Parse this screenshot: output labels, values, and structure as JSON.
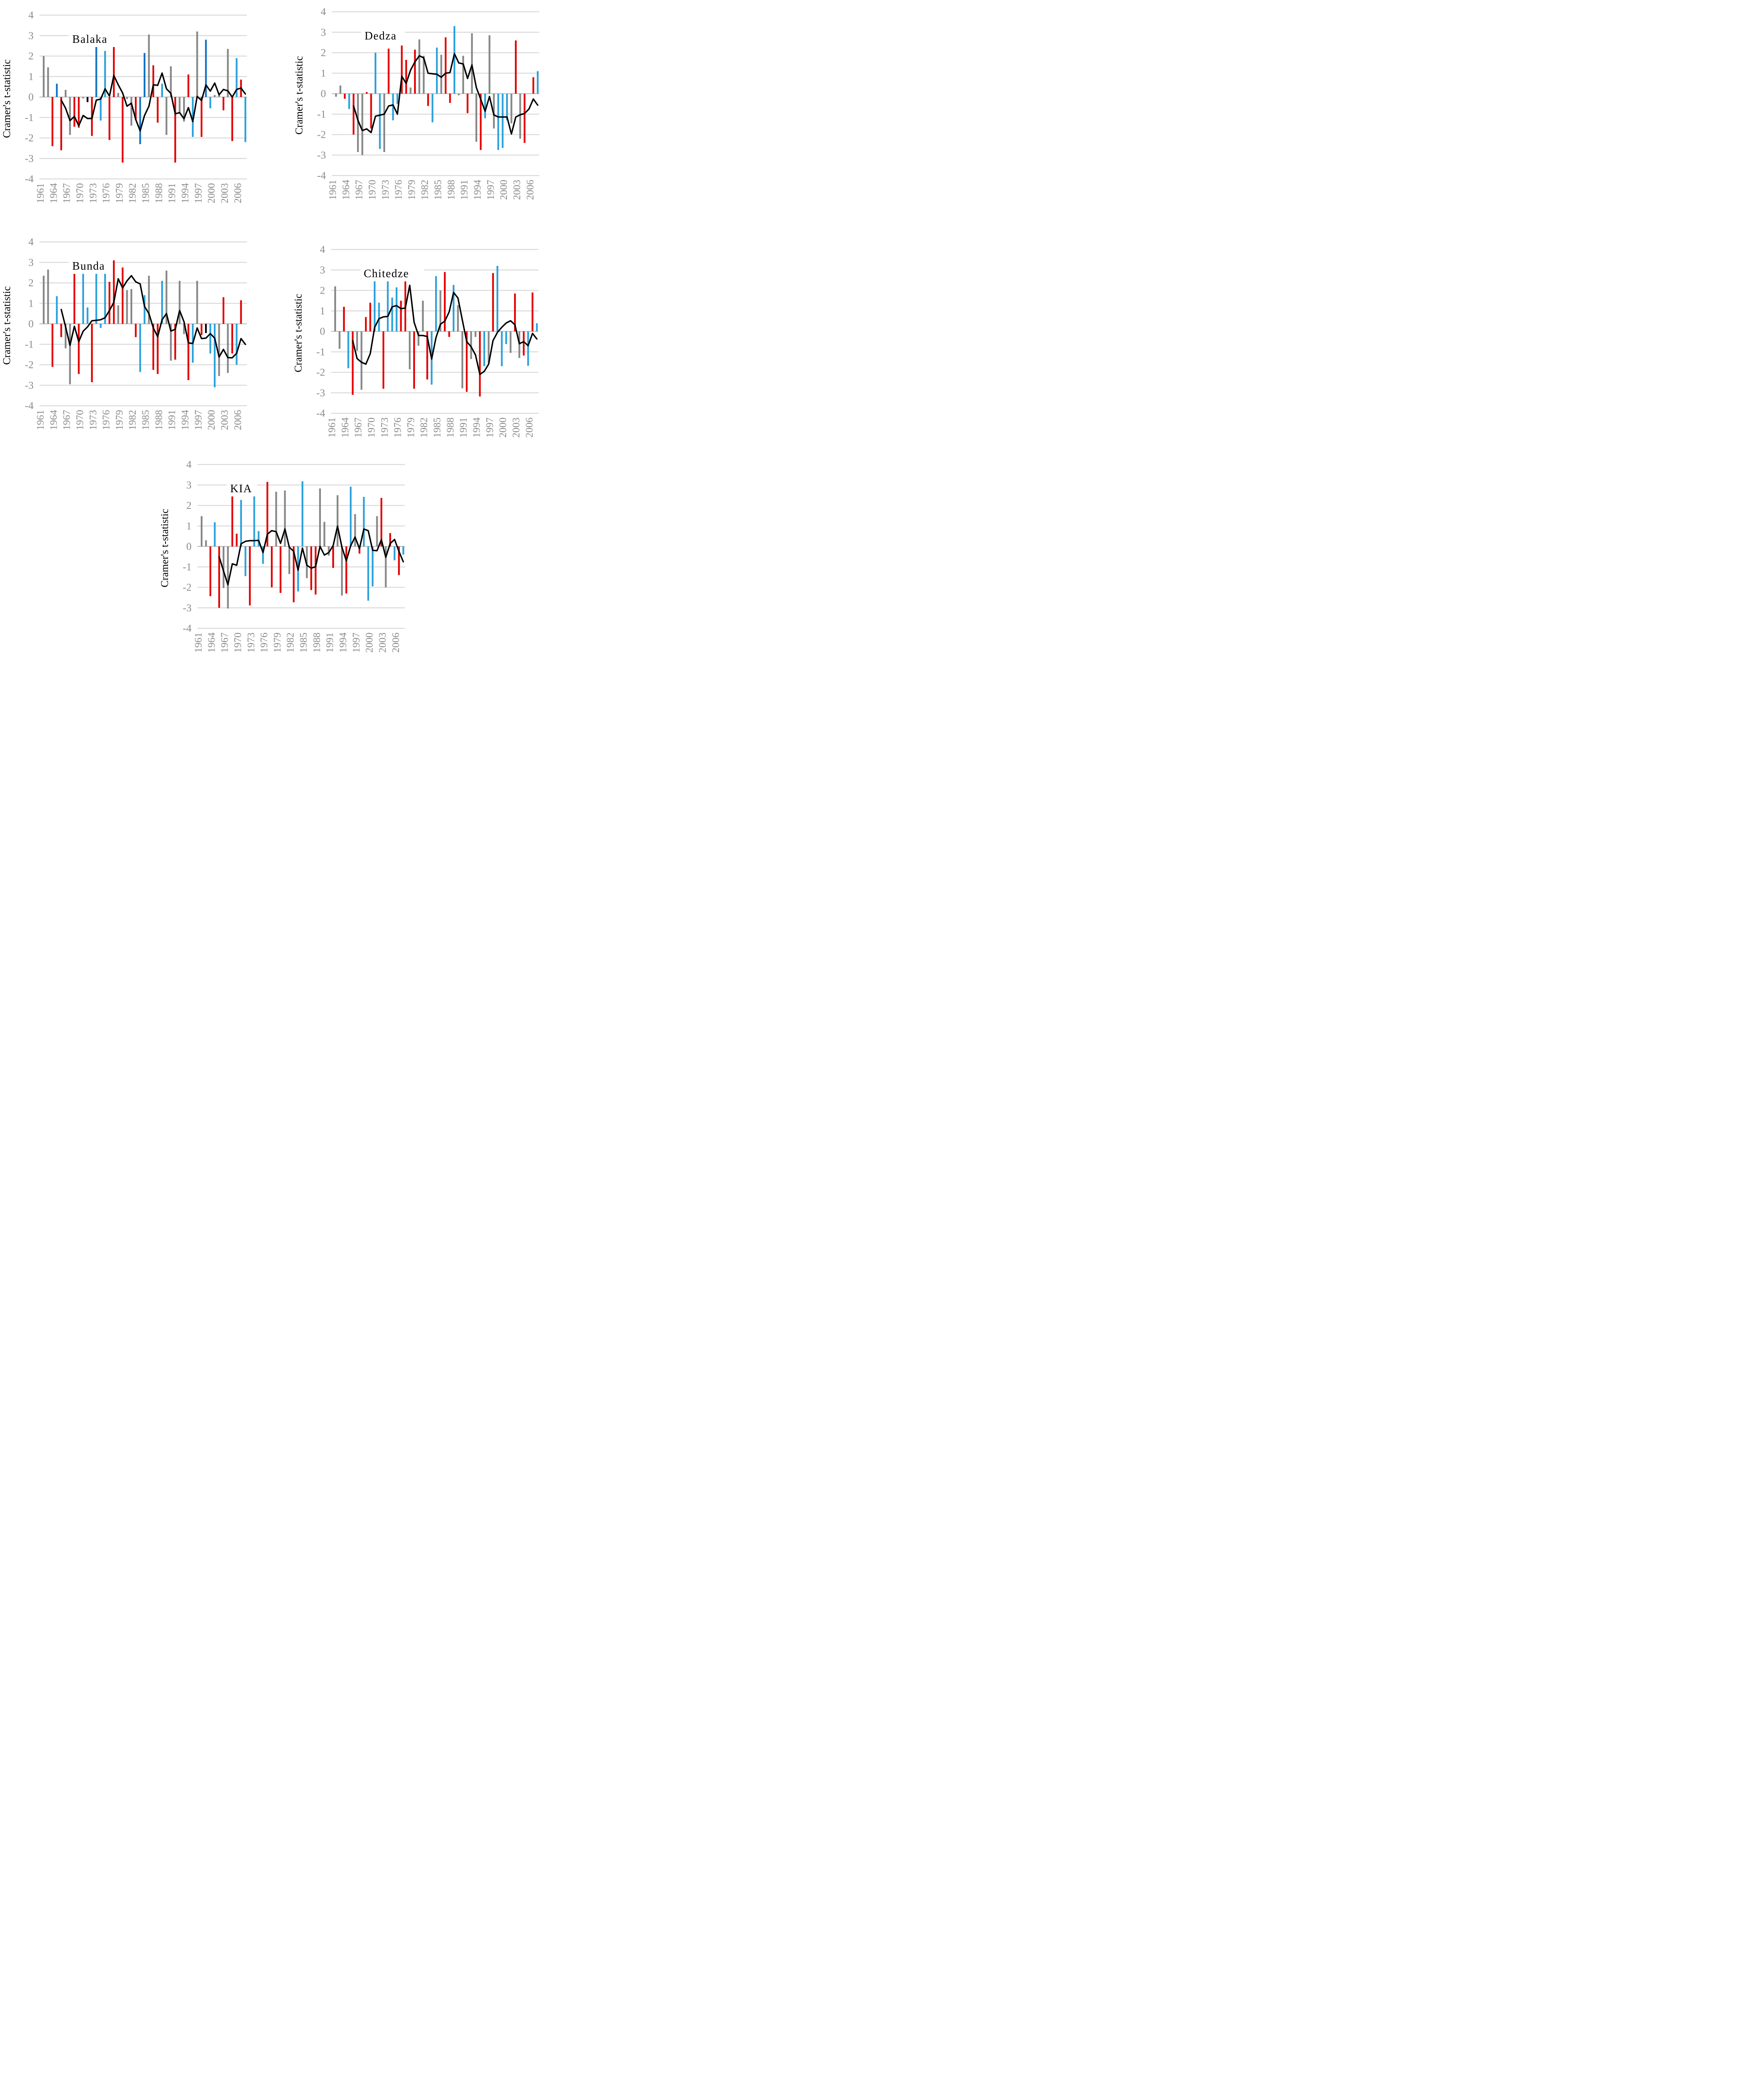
{
  "figure": {
    "ylabel": "Cramer's t-statistic",
    "palette": {
      "red": "#E40000",
      "lightblue": "#2BA1DB",
      "darkblue": "#1272C4",
      "gray": "#868686",
      "black": "#000000",
      "gridline": "#D9D9D9",
      "zeroline": "#C0C0C0",
      "tick_text": "#8A8A8A",
      "title_text": "#000000",
      "line": "#000000"
    }
  },
  "axes": {
    "ylim": [
      -4,
      4
    ],
    "yticks": [
      "4",
      "3",
      "2",
      "1",
      "0",
      "-1",
      "-2",
      "-3",
      "-4"
    ],
    "ytick_values": [
      4,
      3,
      2,
      1,
      0,
      -1,
      -2,
      -3,
      -4
    ],
    "xticks": [
      "1961",
      "1964",
      "1967",
      "1970",
      "1973",
      "1976",
      "1979",
      "1982",
      "1985",
      "1988",
      "1991",
      "1994",
      "1997",
      "2000",
      "2003",
      "2006"
    ],
    "xtick_years": [
      1961,
      1964,
      1967,
      1970,
      1973,
      1976,
      1979,
      1982,
      1985,
      1988,
      1991,
      1994,
      1997,
      2000,
      2003,
      2006
    ],
    "start_year": 1961,
    "end_year": 2007,
    "grid": true,
    "legend": "none"
  },
  "chart_data": [
    {
      "type": "bar",
      "title": "Balaka",
      "ylabel": "Cramer's t-statistic",
      "ylim": [
        -4,
        4
      ],
      "start_year": 1961,
      "bar_values": [
        2.0,
        1.45,
        -2.4,
        0.65,
        -2.6,
        0.35,
        -1.85,
        -1.45,
        -1.5,
        -0.07,
        -0.25,
        -1.9,
        2.75,
        -1.15,
        2.25,
        -2.1,
        3.2,
        0.2,
        -3.2,
        -0.1,
        -1.4,
        -1.1,
        -2.3,
        2.15,
        3.05,
        1.55,
        -1.25,
        0.65,
        -1.85,
        1.5,
        -3.2,
        -0.75,
        -1.2,
        1.1,
        -1.95,
        3.2,
        -1.95,
        2.8,
        -0.55,
        0.1,
        0.1,
        -0.65,
        2.35,
        -2.15,
        1.9,
        0.85,
        -2.2
      ],
      "bar_colors": [
        "gray",
        "gray",
        "red",
        "darkblue",
        "red",
        "gray",
        "gray",
        "red",
        "red",
        "gray",
        "black",
        "red",
        "darkblue",
        "lightblue",
        "lightblue",
        "red",
        "red",
        "gray",
        "red",
        "gray",
        "gray",
        "red",
        "darkblue",
        "darkblue",
        "gray",
        "red",
        "red",
        "lightblue",
        "gray",
        "gray",
        "red",
        "gray",
        "gray",
        "red",
        "lightblue",
        "gray",
        "red",
        "darkblue",
        "lightblue",
        "gray",
        "gray",
        "red",
        "gray",
        "red",
        "lightblue",
        "red",
        "lightblue"
      ],
      "line_start_year": 1965,
      "line_values": [
        -0.15,
        -0.55,
        -1.15,
        -0.95,
        -1.4,
        -0.9,
        -1.05,
        -1.05,
        -0.15,
        -0.1,
        0.4,
        0.05,
        1.05,
        0.6,
        0.2,
        -0.45,
        -0.3,
        -1.1,
        -1.65,
        -0.9,
        -0.45,
        0.6,
        0.57,
        1.17,
        0.4,
        0.18,
        -0.82,
        -0.76,
        -1.06,
        -0.52,
        -1.2,
        0.03,
        -0.17,
        0.59,
        0.29,
        0.68,
        0.11,
        0.37,
        0.3,
        0.0,
        0.37,
        0.44,
        0.15
      ]
    },
    {
      "type": "bar",
      "title": "Dedza",
      "ylabel": "Cramer's t-statistic",
      "ylim": [
        -4,
        4
      ],
      "start_year": 1961,
      "bar_values": [
        -0.15,
        0.4,
        -0.25,
        -0.75,
        -2.0,
        -2.85,
        -3.0,
        0.08,
        -1.7,
        2.0,
        -2.7,
        -2.85,
        2.2,
        -1.3,
        -0.5,
        2.35,
        1.65,
        0.3,
        2.15,
        2.65,
        1.85,
        -0.6,
        -1.4,
        2.25,
        1.9,
        2.75,
        -0.45,
        3.3,
        -0.08,
        1.85,
        -0.95,
        2.95,
        -2.35,
        -2.75,
        -1.2,
        2.85,
        -1.7,
        -2.75,
        -2.65,
        -1.3,
        -1.45,
        2.6,
        -2.2,
        -2.4,
        null,
        0.8,
        1.1
      ],
      "bar_colors": [
        "gray",
        "gray",
        "red",
        "lightblue",
        "red",
        "gray",
        "gray",
        "red",
        "red",
        "lightblue",
        "lightblue",
        "gray",
        "red",
        "lightblue",
        "lightblue",
        "red",
        "red",
        "gray",
        "red",
        "gray",
        "gray",
        "red",
        "lightblue",
        "lightblue",
        "gray",
        "red",
        "red",
        "lightblue",
        "gray",
        "gray",
        "red",
        "gray",
        "gray",
        "red",
        "lightblue",
        "gray",
        "gray",
        "lightblue",
        "lightblue",
        "lightblue",
        "gray",
        "red",
        "gray",
        "red",
        "gray",
        "red",
        "lightblue"
      ],
      "line_start_year": 1965,
      "line_values": [
        -0.6,
        -1.3,
        -1.8,
        -1.72,
        -1.9,
        -1.1,
        -1.05,
        -1.0,
        -0.6,
        -0.55,
        -1.0,
        0.85,
        0.5,
        1.15,
        1.55,
        1.85,
        1.75,
        1.0,
        0.97,
        0.95,
        0.8,
        1.0,
        1.03,
        1.95,
        1.5,
        1.45,
        0.74,
        1.4,
        0.3,
        -0.27,
        -0.86,
        -0.14,
        -1.04,
        -1.14,
        -1.14,
        -1.14,
        -1.97,
        -1.14,
        -1.03,
        -0.97,
        -0.75,
        -0.26,
        -0.56
      ]
    },
    {
      "type": "bar",
      "title": "Bunda",
      "ylabel": "Cramer's t-statistic",
      "ylim": [
        -4,
        4
      ],
      "start_year": 1961,
      "bar_values": [
        2.35,
        2.65,
        -2.1,
        1.35,
        -0.65,
        -1.2,
        -2.95,
        2.75,
        -2.45,
        2.65,
        0.8,
        -2.85,
        3.1,
        -0.2,
        3.05,
        2.05,
        3.1,
        0.9,
        2.75,
        1.65,
        1.7,
        -0.65,
        -2.35,
        1.4,
        2.35,
        -2.25,
        -2.45,
        2.1,
        2.6,
        -1.8,
        -1.75,
        2.1,
        -0.5,
        -2.75,
        -1.9,
        2.1,
        -0.55,
        -0.45,
        -1.45,
        -3.1,
        -2.55,
        1.3,
        -2.4,
        -1.45,
        -2.0,
        1.15,
        null
      ],
      "bar_colors": [
        "gray",
        "gray",
        "red",
        "lightblue",
        "red",
        "gray",
        "gray",
        "red",
        "red",
        "lightblue",
        "lightblue",
        "red",
        "lightblue",
        "lightblue",
        "lightblue",
        "red",
        "red",
        "gray",
        "red",
        "gray",
        "gray",
        "red",
        "lightblue",
        "lightblue",
        "gray",
        "red",
        "red",
        "lightblue",
        "gray",
        "gray",
        "red",
        "gray",
        "gray",
        "red",
        "lightblue",
        "gray",
        "red",
        "black",
        "lightblue",
        "lightblue",
        "gray",
        "red",
        "gray",
        "red",
        "lightblue",
        "red",
        "gray"
      ],
      "line_start_year": 1965,
      "line_values": [
        0.7,
        -0.15,
        -1.05,
        -0.12,
        -0.87,
        -0.36,
        -0.15,
        0.15,
        0.17,
        0.2,
        0.3,
        0.65,
        1.05,
        2.2,
        1.75,
        2.1,
        2.35,
        2.05,
        1.95,
        0.85,
        0.5,
        -0.2,
        -0.63,
        0.2,
        0.5,
        -0.35,
        -0.27,
        0.65,
        0.1,
        -0.93,
        -0.96,
        -0.2,
        -0.72,
        -0.7,
        -0.48,
        -0.7,
        -1.62,
        -1.25,
        -1.65,
        -1.66,
        -1.44,
        -0.72,
        -1.0
      ]
    },
    {
      "type": "bar",
      "title": "Chitedze",
      "ylabel": "Cramer's t-statistic",
      "ylim": [
        -4,
        4
      ],
      "start_year": 1961,
      "bar_values": [
        2.2,
        -0.85,
        1.2,
        -1.8,
        -3.1,
        -0.95,
        -2.85,
        0.7,
        1.4,
        2.7,
        1.4,
        -2.8,
        2.7,
        1.65,
        2.15,
        1.5,
        2.75,
        -1.85,
        -2.8,
        -0.7,
        1.5,
        -2.35,
        -2.6,
        2.7,
        2.0,
        2.9,
        -0.27,
        2.27,
        1.28,
        -2.78,
        -2.95,
        -1.35,
        -0.27,
        -3.18,
        -1.7,
        -1.55,
        2.85,
        3.2,
        -1.7,
        -0.62,
        -1.05,
        1.85,
        -1.3,
        -1.18,
        -1.68,
        1.9,
        0.4
      ],
      "bar_colors": [
        "gray",
        "gray",
        "red",
        "lightblue",
        "red",
        "gray",
        "gray",
        "red",
        "red",
        "lightblue",
        "lightblue",
        "red",
        "lightblue",
        "lightblue",
        "lightblue",
        "red",
        "red",
        "gray",
        "red",
        "gray",
        "gray",
        "red",
        "lightblue",
        "lightblue",
        "gray",
        "red",
        "red",
        "lightblue",
        "gray",
        "gray",
        "red",
        "gray",
        "gray",
        "red",
        "lightblue",
        "gray",
        "red",
        "lightblue",
        "lightblue",
        "lightblue",
        "gray",
        "red",
        "gray",
        "red",
        "lightblue",
        "red",
        "lightblue"
      ],
      "line_start_year": 1965,
      "line_values": [
        -0.46,
        -1.33,
        -1.51,
        -1.6,
        -1.09,
        0.2,
        0.62,
        0.71,
        0.73,
        1.2,
        1.26,
        1.11,
        1.14,
        2.25,
        0.45,
        -0.2,
        -0.2,
        -0.25,
        -1.35,
        -0.3,
        0.35,
        0.5,
        0.95,
        1.9,
        1.63,
        0.55,
        -0.5,
        -0.75,
        -1.15,
        -2.1,
        -1.95,
        -1.6,
        -0.45,
        -0.05,
        0.2,
        0.41,
        0.52,
        0.32,
        -0.6,
        -0.5,
        -0.7,
        -0.1,
        -0.37
      ]
    },
    {
      "type": "bar",
      "title": "KIA",
      "ylabel": "Cramer's t-statistic",
      "ylim": [
        -4,
        4
      ],
      "start_year": 1961,
      "bar_values": [
        1.48,
        0.3,
        -2.43,
        1.18,
        -3.0,
        -2.03,
        -3.03,
        2.8,
        0.62,
        2.27,
        -1.45,
        -2.88,
        2.83,
        0.75,
        -0.85,
        3.15,
        -2.0,
        2.67,
        -2.27,
        2.73,
        -1.35,
        -2.73,
        -2.2,
        3.18,
        -1.55,
        -2.13,
        -2.35,
        2.83,
        1.2,
        -0.45,
        -1.05,
        2.5,
        -2.4,
        -2.3,
        2.92,
        1.58,
        -0.35,
        2.42,
        -2.65,
        -1.95,
        1.48,
        2.37,
        -2.0,
        0.65,
        -0.68,
        -1.4,
        -0.4
      ],
      "bar_colors": [
        "gray",
        "gray",
        "red",
        "lightblue",
        "red",
        "gray",
        "gray",
        "red",
        "red",
        "lightblue",
        "lightblue",
        "red",
        "lightblue",
        "lightblue",
        "lightblue",
        "red",
        "red",
        "gray",
        "red",
        "gray",
        "gray",
        "red",
        "lightblue",
        "lightblue",
        "gray",
        "red",
        "red",
        "gray",
        "gray",
        "gray",
        "red",
        "gray",
        "gray",
        "red",
        "lightblue",
        "gray",
        "red",
        "lightblue",
        "lightblue",
        "lightblue",
        "gray",
        "red",
        "gray",
        "red",
        "lightblue",
        "red",
        "lightblue"
      ],
      "line_start_year": 1965,
      "line_values": [
        -0.51,
        -1.2,
        -1.87,
        -0.85,
        -0.92,
        0.13,
        0.25,
        0.28,
        0.28,
        0.3,
        -0.3,
        0.6,
        0.77,
        0.72,
        0.15,
        0.85,
        -0.04,
        -0.24,
        -1.16,
        -0.08,
        -0.92,
        -1.06,
        -0.99,
        0.0,
        -0.42,
        -0.3,
        0.04,
        0.99,
        -0.04,
        -0.7,
        0.04,
        0.46,
        -0.11,
        0.85,
        0.77,
        -0.19,
        -0.21,
        0.33,
        -0.53,
        0.14,
        0.34,
        -0.24,
        -0.75
      ]
    }
  ]
}
